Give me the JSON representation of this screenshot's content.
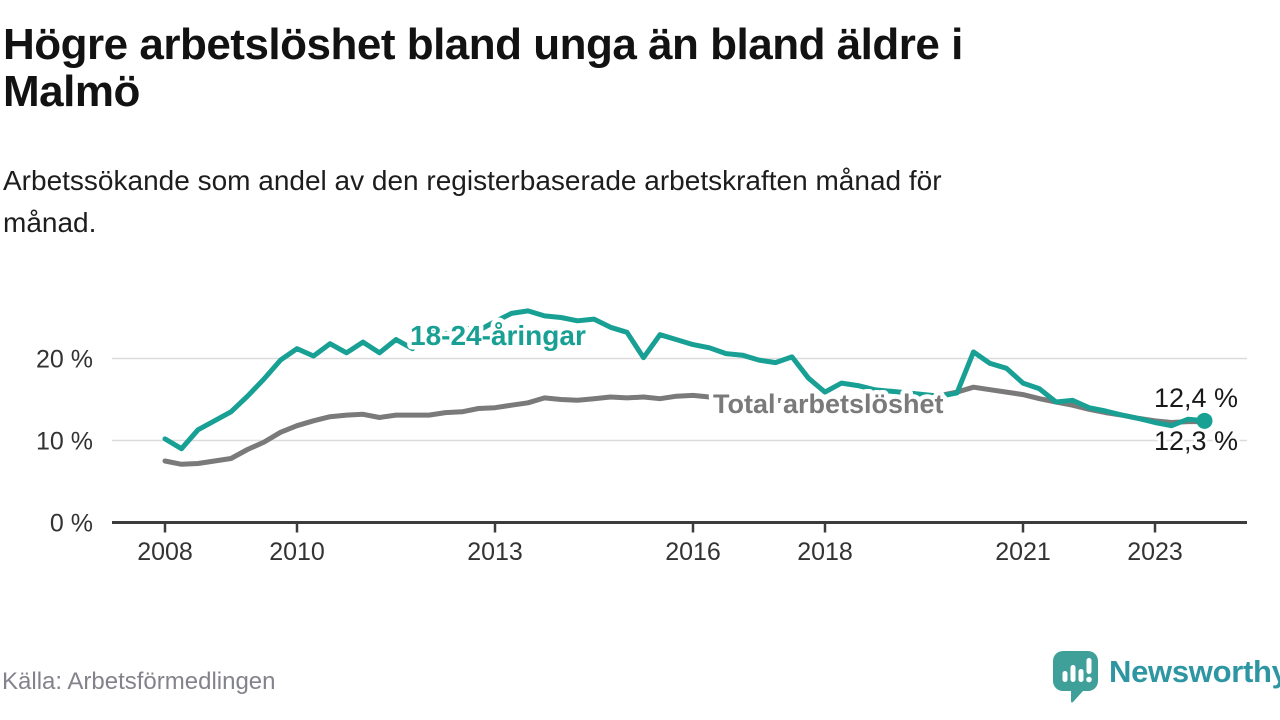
{
  "header": {
    "title_line1": "Högre arbetslöshet bland unga än bland äldre i",
    "title_line2": "Malmö",
    "subtitle_line1": "Arbetssökande som andel av den registerbaserade arbetskraften månad för",
    "subtitle_line2": "månad."
  },
  "chart_data": {
    "type": "line",
    "title": "Högre arbetslöshet bland unga än bland äldre i Malmö",
    "subtitle": "Arbetssökande som andel av den registerbaserade arbetskraften månad för månad.",
    "x_unit": "year (quarterly samples)",
    "x_start_year": 2008.0,
    "x_step_years": 0.25,
    "xlim": [
      2007.9,
      2024.3
    ],
    "ylim": [
      0,
      29
    ],
    "grid": "horizontal-only",
    "x_ticks": [
      {
        "year": 2008,
        "label": "2008"
      },
      {
        "year": 2010,
        "label": "2010"
      },
      {
        "year": 2013,
        "label": "2013"
      },
      {
        "year": 2016,
        "label": "2016"
      },
      {
        "year": 2018,
        "label": "2018"
      },
      {
        "year": 2021,
        "label": "2021"
      },
      {
        "year": 2023,
        "label": "2023"
      }
    ],
    "y_ticks": [
      {
        "value": 0,
        "label": "0 %"
      },
      {
        "value": 10,
        "label": "10 %"
      },
      {
        "value": 20,
        "label": "20 %"
      }
    ],
    "series": [
      {
        "name": "18-24-åringar",
        "label": "18-24-åringar",
        "color": "#18a094",
        "end_label": "12,4 %",
        "end_dot": true,
        "values": [
          10.2,
          9.0,
          11.3,
          12.4,
          13.5,
          15.4,
          17.5,
          19.8,
          21.2,
          20.3,
          21.8,
          20.7,
          22.0,
          20.7,
          22.3,
          21.2,
          23.4,
          23.0,
          23.8,
          23.4,
          24.5,
          25.5,
          25.8,
          25.2,
          25.0,
          24.6,
          24.8,
          23.8,
          23.2,
          20.1,
          22.9,
          22.3,
          21.7,
          21.3,
          20.6,
          20.4,
          19.8,
          19.5,
          20.2,
          17.6,
          15.9,
          17.0,
          16.7,
          16.2,
          16.0,
          15.8,
          15.6,
          15.4,
          15.8,
          20.8,
          19.4,
          18.8,
          17.0,
          16.3,
          14.7,
          14.9,
          14.0,
          13.6,
          13.1,
          12.7,
          12.2,
          11.8,
          12.6,
          12.4
        ]
      },
      {
        "name": "Total arbetslöshet",
        "label": "Total arbetslöshet",
        "color": "#7a7a7a",
        "end_label": "12,3 %",
        "end_dot": false,
        "values": [
          7.5,
          7.1,
          7.2,
          7.5,
          7.8,
          8.9,
          9.8,
          11.0,
          11.8,
          12.4,
          12.9,
          13.1,
          13.2,
          12.8,
          13.1,
          13.1,
          13.1,
          13.4,
          13.5,
          13.9,
          14.0,
          14.3,
          14.6,
          15.2,
          15.0,
          14.9,
          15.1,
          15.3,
          15.2,
          15.3,
          15.1,
          15.4,
          15.5,
          15.3,
          15.2,
          15.1,
          15.0,
          14.9,
          14.8,
          14.8,
          14.7,
          14.6,
          14.5,
          14.6,
          14.7,
          14.9,
          15.1,
          15.5,
          15.9,
          16.5,
          16.2,
          15.9,
          15.6,
          15.1,
          14.7,
          14.3,
          13.8,
          13.4,
          13.1,
          12.7,
          12.4,
          12.2,
          12.3,
          12.3
        ]
      }
    ],
    "colors": {
      "young_series": "#18a094",
      "total_series": "#7a7a7a",
      "axis": "#3c3c3c",
      "gridline": "#dbdbdb"
    }
  },
  "footer": {
    "source": "Källa: Arbetsförmedlingen",
    "brand": "Newsworthy",
    "brand_color": "#2e96a2",
    "brand_icon_color": "#3fa09a"
  }
}
